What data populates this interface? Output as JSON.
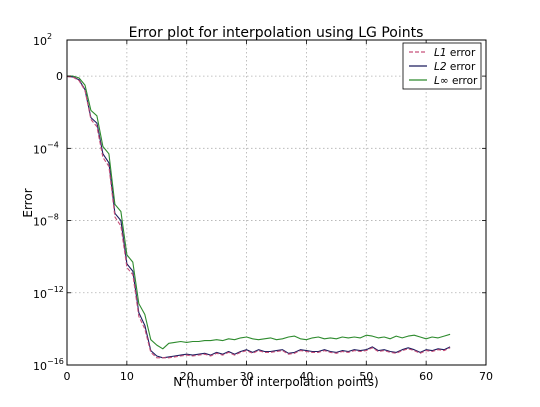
{
  "chart_data": {
    "type": "line",
    "title": "Error plot for interpolation using LG Points",
    "xlabel": "N (number of interpolation points)",
    "ylabel": "Error",
    "xlim": [
      0,
      70
    ],
    "ylim_log10": [
      -16,
      2
    ],
    "y_scale": "log",
    "grid": true,
    "legend_position": "top-right",
    "x_ticks": [
      {
        "value": 0,
        "label": "0"
      },
      {
        "value": 10,
        "label": "10"
      },
      {
        "value": 20,
        "label": "20"
      },
      {
        "value": 30,
        "label": "30"
      },
      {
        "value": 40,
        "label": "40"
      },
      {
        "value": 50,
        "label": "50"
      },
      {
        "value": 60,
        "label": "60"
      },
      {
        "value": 70,
        "label": "70"
      }
    ],
    "y_ticks": [
      {
        "exp": 2,
        "base": "10",
        "sup": "2"
      },
      {
        "exp": 0,
        "base": "0",
        "sup": ""
      },
      {
        "exp": -4,
        "base": "10",
        "sup": "−4"
      },
      {
        "exp": -8,
        "base": "10",
        "sup": "−8"
      },
      {
        "exp": -12,
        "base": "10",
        "sup": "−12"
      },
      {
        "exp": -16,
        "base": "10",
        "sup": "−16"
      }
    ],
    "series": [
      {
        "name_math": "L1",
        "name_suffix": " error",
        "color": "#c8507a",
        "dash": "4 2",
        "x": [
          0,
          1,
          2,
          3,
          4,
          5,
          6,
          7,
          8,
          9,
          10,
          11,
          12,
          13,
          14,
          15,
          16,
          17,
          18,
          19,
          20,
          21,
          22,
          23,
          24,
          25,
          26,
          27,
          28,
          29,
          30,
          31,
          32,
          33,
          34,
          35,
          36,
          37,
          38,
          39,
          40,
          41,
          42,
          43,
          44,
          45,
          46,
          47,
          48,
          49,
          50,
          51,
          52,
          53,
          54,
          55,
          56,
          57,
          58,
          59,
          60,
          61,
          62,
          63,
          64
        ],
        "log10_y": [
          -0.02,
          -0.06,
          -0.25,
          -0.8,
          -2.4,
          -2.8,
          -4.5,
          -5.0,
          -7.8,
          -8.3,
          -10.6,
          -11.0,
          -13.3,
          -14.0,
          -15.3,
          -15.6,
          -15.6,
          -15.6,
          -15.55,
          -15.5,
          -15.45,
          -15.5,
          -15.45,
          -15.4,
          -15.5,
          -15.35,
          -15.45,
          -15.3,
          -15.45,
          -15.3,
          -15.2,
          -15.35,
          -15.2,
          -15.3,
          -15.3,
          -15.25,
          -15.2,
          -15.4,
          -15.35,
          -15.2,
          -15.25,
          -15.3,
          -15.3,
          -15.2,
          -15.3,
          -15.35,
          -15.25,
          -15.3,
          -15.2,
          -15.25,
          -15.2,
          -15.05,
          -15.25,
          -15.2,
          -15.3,
          -15.35,
          -15.2,
          -15.1,
          -15.2,
          -15.35,
          -15.2,
          -15.25,
          -15.15,
          -15.2,
          -15.05
        ]
      },
      {
        "name_math": "L2",
        "name_suffix": " error",
        "color": "#1c1c5e",
        "dash": "",
        "x": [
          0,
          1,
          2,
          3,
          4,
          5,
          6,
          7,
          8,
          9,
          10,
          11,
          12,
          13,
          14,
          15,
          16,
          17,
          18,
          19,
          20,
          21,
          22,
          23,
          24,
          25,
          26,
          27,
          28,
          29,
          30,
          31,
          32,
          33,
          34,
          35,
          36,
          37,
          38,
          39,
          40,
          41,
          42,
          43,
          44,
          45,
          46,
          47,
          48,
          49,
          50,
          51,
          52,
          53,
          54,
          55,
          56,
          57,
          58,
          59,
          60,
          61,
          62,
          63,
          64
        ],
        "log10_y": [
          -0.02,
          -0.05,
          -0.2,
          -0.75,
          -2.3,
          -2.6,
          -4.3,
          -4.8,
          -7.6,
          -8.0,
          -10.4,
          -10.8,
          -13.1,
          -13.8,
          -15.2,
          -15.5,
          -15.6,
          -15.55,
          -15.5,
          -15.45,
          -15.4,
          -15.45,
          -15.4,
          -15.35,
          -15.45,
          -15.3,
          -15.4,
          -15.25,
          -15.4,
          -15.25,
          -15.15,
          -15.3,
          -15.15,
          -15.25,
          -15.25,
          -15.2,
          -15.15,
          -15.35,
          -15.3,
          -15.15,
          -15.2,
          -15.25,
          -15.25,
          -15.15,
          -15.25,
          -15.3,
          -15.2,
          -15.25,
          -15.15,
          -15.2,
          -15.15,
          -15.0,
          -15.2,
          -15.15,
          -15.25,
          -15.3,
          -15.15,
          -15.05,
          -15.15,
          -15.3,
          -15.15,
          -15.2,
          -15.1,
          -15.15,
          -15.0
        ]
      },
      {
        "name_math": "L∞",
        "name_suffix": " error",
        "color": "#2e8b2e",
        "dash": "",
        "x": [
          0,
          1,
          2,
          3,
          4,
          5,
          6,
          7,
          8,
          9,
          10,
          11,
          12,
          13,
          14,
          15,
          16,
          17,
          18,
          19,
          20,
          21,
          22,
          23,
          24,
          25,
          26,
          27,
          28,
          29,
          30,
          31,
          32,
          33,
          34,
          35,
          36,
          37,
          38,
          39,
          40,
          41,
          42,
          43,
          44,
          45,
          46,
          47,
          48,
          49,
          50,
          51,
          52,
          53,
          54,
          55,
          56,
          57,
          58,
          59,
          60,
          61,
          62,
          63,
          64
        ],
        "log10_y": [
          0.0,
          0.0,
          -0.1,
          -0.5,
          -1.9,
          -2.2,
          -3.9,
          -4.3,
          -7.1,
          -7.5,
          -9.9,
          -10.3,
          -12.6,
          -13.2,
          -14.6,
          -14.9,
          -15.1,
          -14.8,
          -14.75,
          -14.7,
          -14.75,
          -14.7,
          -14.7,
          -14.65,
          -14.65,
          -14.6,
          -14.65,
          -14.55,
          -14.6,
          -14.5,
          -14.45,
          -14.55,
          -14.6,
          -14.55,
          -14.5,
          -14.6,
          -14.55,
          -14.45,
          -14.4,
          -14.55,
          -14.6,
          -14.5,
          -14.45,
          -14.55,
          -14.5,
          -14.55,
          -14.45,
          -14.5,
          -14.45,
          -14.5,
          -14.35,
          -14.4,
          -14.5,
          -14.45,
          -14.55,
          -14.4,
          -14.5,
          -14.4,
          -14.35,
          -14.45,
          -14.55,
          -14.45,
          -14.5,
          -14.4,
          -14.3
        ]
      }
    ]
  }
}
